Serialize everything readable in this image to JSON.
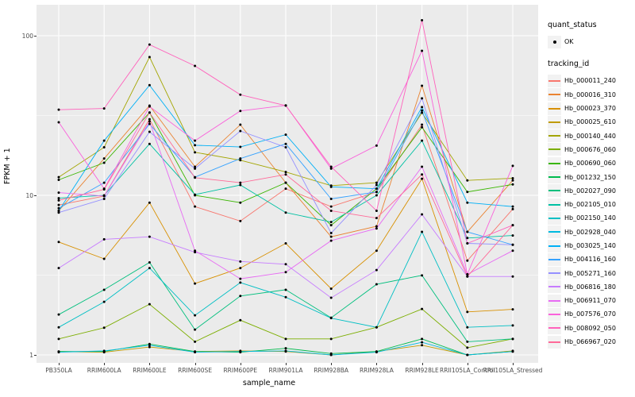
{
  "figure": {
    "panel_background": "#EBEBEB",
    "grid_color": "#FFFFFF",
    "point_color": "#000000",
    "tick_label_color": "#4D4D4D",
    "axis_title_color": "#000000",
    "legend_key_background": "#F2F2F2"
  },
  "legend": {
    "quant_status": {
      "title": "quant_status",
      "items": [
        {
          "label": "OK",
          "marker": "black-point"
        }
      ]
    },
    "tracking_id": {
      "title": "tracking_id"
    }
  },
  "chart_data": {
    "type": "line",
    "title": "",
    "xlabel": "sample_name",
    "ylabel": "FPKM + 1",
    "y_scale": "log10",
    "y_ticks": [
      1,
      10,
      100
    ],
    "y_minor_gridlines": [
      3.162,
      31.62
    ],
    "ylim": [
      0.89,
      148
    ],
    "grid": true,
    "legend_position": "right",
    "point_marker": "black dot at every observation (quant_status OK)",
    "categories": [
      "PB350LA",
      "RRIM600LA",
      "RRIM600LE",
      "RRIM600SE",
      "RRIM600PE",
      "RRIM901LA",
      "RRIM928BA",
      "RRIM928LA",
      "RRIM928LE",
      "RRII105LA_Control",
      "RRII105LA_Stressed"
    ],
    "series": [
      {
        "name": "Hb_000011_240",
        "color": "#F8766D",
        "values": [
          8.7,
          9.9,
          30,
          8.5,
          6.9,
          11,
          8.5,
          10.5,
          27.7,
          3.9,
          8.2
        ]
      },
      {
        "name": "Hb_000016_310",
        "color": "#EA8331",
        "values": [
          8.0,
          17,
          36.5,
          15.1,
          27.7,
          12,
          5.5,
          6.4,
          48.6,
          5.9,
          12.4
        ]
      },
      {
        "name": "Hb_000023_370",
        "color": "#D89000",
        "values": [
          5.1,
          4.0,
          9.0,
          2.8,
          3.5,
          5.0,
          2.6,
          4.5,
          12.7,
          1.86,
          1.93
        ]
      },
      {
        "name": "Hb_000025_610",
        "color": "#C09B00",
        "values": [
          1.05,
          1.04,
          1.12,
          1.05,
          1.06,
          1.05,
          1.0,
          1.05,
          1.15,
          1.0,
          1.06
        ]
      },
      {
        "name": "Hb_000140_440",
        "color": "#A3A500",
        "values": [
          13,
          20,
          73.5,
          18.6,
          16.6,
          14,
          11.5,
          12,
          32.9,
          12.4,
          12.8
        ]
      },
      {
        "name": "Hb_000676_060",
        "color": "#7CAE00",
        "values": [
          1.26,
          1.48,
          2.08,
          1.21,
          1.65,
          1.26,
          1.26,
          1.49,
          1.94,
          1.11,
          1.26
        ]
      },
      {
        "name": "Hb_000690_060",
        "color": "#39B600",
        "values": [
          12.5,
          16,
          33,
          10,
          9.0,
          12,
          6.5,
          11,
          26.7,
          10.5,
          11.7
        ]
      },
      {
        "name": "Hb_001232_150",
        "color": "#00BB4E",
        "values": [
          1.05,
          1.05,
          1.17,
          1.05,
          1.04,
          1.1,
          1.02,
          1.05,
          1.26,
          1.0,
          1.05
        ]
      },
      {
        "name": "Hb_002027_090",
        "color": "#00BF7D",
        "values": [
          1.79,
          2.56,
          3.8,
          1.44,
          2.34,
          2.56,
          1.71,
          2.77,
          3.15,
          1.21,
          1.26
        ]
      },
      {
        "name": "Hb_002105_010",
        "color": "#00C1A3",
        "values": [
          9.6,
          10,
          21,
          10.1,
          11.6,
          7.8,
          6.8,
          10,
          22,
          5.4,
          5.6
        ]
      },
      {
        "name": "Hb_002150_140",
        "color": "#00BFC4",
        "values": [
          1.49,
          2.15,
          3.5,
          1.77,
          2.84,
          2.3,
          1.7,
          1.49,
          5.9,
          1.49,
          1.53
        ]
      },
      {
        "name": "Hb_002928_040",
        "color": "#00BAE0",
        "values": [
          1.04,
          1.06,
          1.15,
          1.04,
          1.05,
          1.06,
          1.0,
          1.04,
          1.2,
          1.0,
          1.05
        ]
      },
      {
        "name": "Hb_003025_140",
        "color": "#00B0F6",
        "values": [
          8.0,
          22,
          49,
          20.6,
          20.1,
          24,
          11.3,
          11,
          35.7,
          9.0,
          8.5
        ]
      },
      {
        "name": "Hb_004116_160",
        "color": "#35A2FF",
        "values": [
          8.3,
          12,
          28,
          13,
          17,
          21,
          9.5,
          10.5,
          34,
          5.9,
          4.9
        ]
      },
      {
        "name": "Hb_005271_160",
        "color": "#9590FF",
        "values": [
          7.8,
          9.5,
          25,
          14.7,
          25.3,
          20,
          5.8,
          11.6,
          40.5,
          5.0,
          4.9
        ]
      },
      {
        "name": "Hb_006816_180",
        "color": "#C77CFF",
        "values": [
          3.5,
          5.3,
          5.5,
          4.4,
          3.85,
          3.7,
          2.28,
          3.4,
          7.6,
          3.1,
          3.1
        ]
      },
      {
        "name": "Hb_006911_070",
        "color": "#E76BF3",
        "values": [
          10.4,
          9.9,
          29,
          4.5,
          3.0,
          3.3,
          5.2,
          6.2,
          15.1,
          3.2,
          4.5
        ]
      },
      {
        "name": "Hb_007576_070",
        "color": "#FA62DB",
        "values": [
          28.7,
          11,
          36,
          22,
          33.8,
          36.6,
          14.7,
          20.5,
          80.4,
          3.2,
          15.3
        ]
      },
      {
        "name": "Hb_008092_050",
        "color": "#FF62BC",
        "values": [
          34.4,
          35,
          88,
          64.7,
          42.7,
          36.5,
          15.1,
          8.0,
          125,
          5.0,
          6.5
        ]
      },
      {
        "name": "Hb_066967_020",
        "color": "#FF6A98",
        "values": [
          9.3,
          10.9,
          33,
          12.9,
          12.0,
          13.5,
          8.0,
          7.2,
          13.5,
          3.1,
          6.5
        ]
      }
    ]
  }
}
